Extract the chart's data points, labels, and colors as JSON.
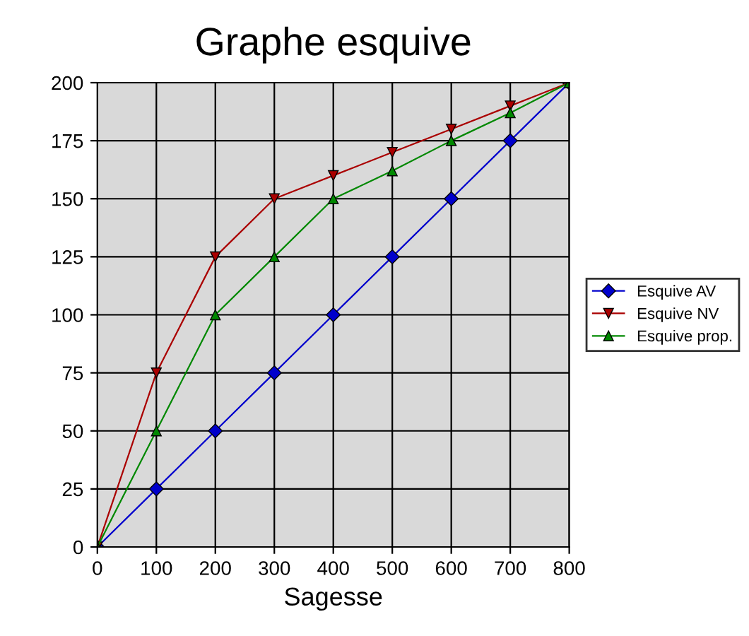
{
  "chart_data": {
    "type": "line",
    "title": "Graphe esquive",
    "xlabel": "Sagesse",
    "x": [
      0,
      100,
      200,
      300,
      400,
      500,
      600,
      700,
      800
    ],
    "series": [
      {
        "name": "Esquive AV",
        "color": "#0000cc",
        "marker": "diamond",
        "values": [
          0,
          25,
          50,
          75,
          100,
          125,
          150,
          175,
          200
        ]
      },
      {
        "name": "Esquive NV",
        "color": "#aa0000",
        "marker": "triangle_down",
        "values": [
          0,
          75,
          125,
          150,
          160,
          170,
          180,
          190,
          200
        ]
      },
      {
        "name": "Esquive prop.",
        "color": "#008800",
        "marker": "triangle",
        "values": [
          0,
          50,
          100,
          125,
          150,
          162,
          175,
          187,
          200
        ]
      }
    ],
    "xlim": [
      0,
      800
    ],
    "xticks": [
      0,
      100,
      200,
      300,
      400,
      500,
      600,
      700,
      800
    ],
    "ylim": [
      0,
      200
    ],
    "yticks": [
      0,
      25,
      50,
      75,
      100,
      125,
      150,
      175,
      200
    ],
    "grid": true,
    "legend": "right",
    "line_style": "solid"
  }
}
